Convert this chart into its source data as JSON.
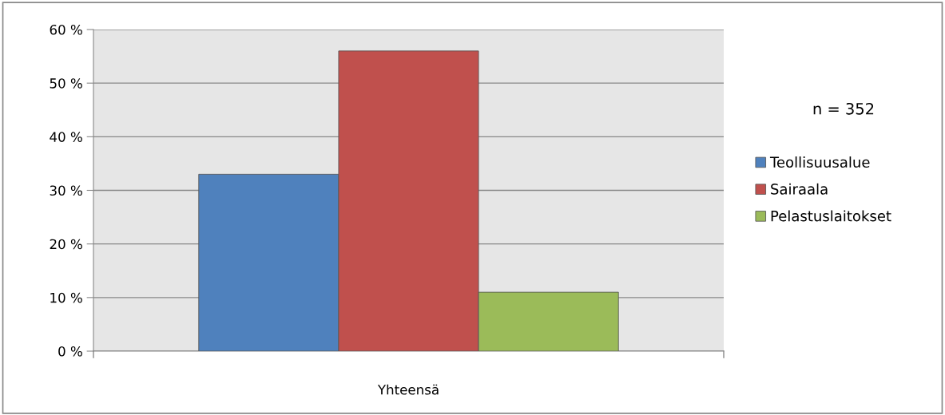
{
  "chart_data": {
    "type": "bar",
    "categories": [
      "Yhteensä"
    ],
    "series": [
      {
        "name": "Teollisuusalue",
        "color": "#4f81bd",
        "values": [
          33
        ]
      },
      {
        "name": "Sairaala",
        "color": "#c0504d",
        "values": [
          56
        ]
      },
      {
        "name": "Pelastuslaitokset",
        "color": "#9bbb59",
        "values": [
          11
        ]
      }
    ],
    "ylim": [
      0,
      60
    ],
    "yticks": [
      {
        "value": 0,
        "label": "0 %"
      },
      {
        "value": 10,
        "label": "10 %"
      },
      {
        "value": 20,
        "label": "20 %"
      },
      {
        "value": 30,
        "label": "30 %"
      },
      {
        "value": 40,
        "label": "40 %"
      },
      {
        "value": 50,
        "label": "50 %"
      },
      {
        "value": 60,
        "label": "60 %"
      }
    ],
    "grid": "y",
    "legend": "right",
    "annotations": [
      "n = 352"
    ]
  }
}
